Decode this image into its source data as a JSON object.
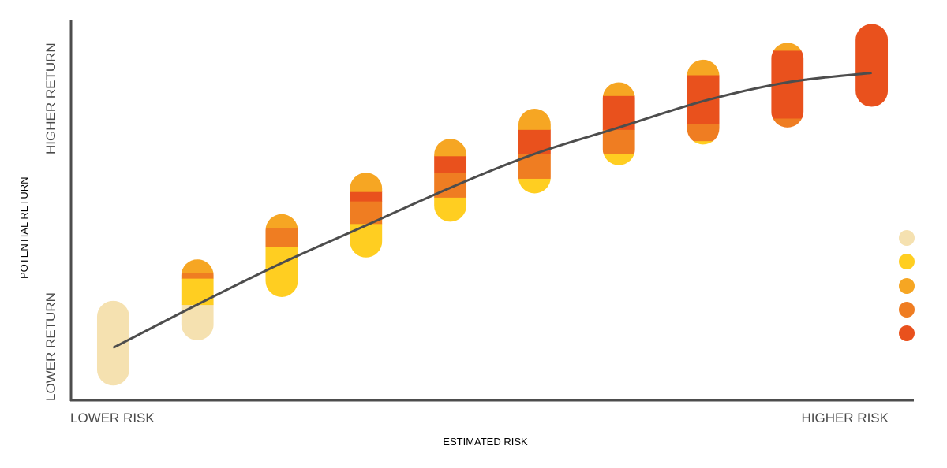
{
  "chart_data": {
    "type": "range-bar",
    "xlabel": "ESTIMATED RISK",
    "ylabel": "POTENTIAL RETURN",
    "x_low_label": "LOWER RISK",
    "x_high_label": "HIGHER RISK",
    "y_low_label": "LOWER RETURN",
    "y_high_label": "HIGHER RETURN",
    "xlim": [
      0.5,
      10.5
    ],
    "ylim": [
      0,
      100
    ],
    "grid": false,
    "legend_position": "right",
    "colors": [
      "#f5e1b0",
      "#ffce21",
      "#f6a623",
      "#ef7d22",
      "#e9511d"
    ],
    "trend_curve": [
      [
        1,
        13.5
      ],
      [
        2,
        25
      ],
      [
        3,
        36
      ],
      [
        4,
        46
      ],
      [
        5,
        56
      ],
      [
        6,
        65
      ],
      [
        7,
        72
      ],
      [
        8,
        79
      ],
      [
        9,
        84
      ],
      [
        10,
        86.5
      ]
    ],
    "bars": [
      {
        "x": 1,
        "segments": [
          {
            "band": 0,
            "from": 3.5,
            "to": 26
          }
        ]
      },
      {
        "x": 2,
        "segments": [
          {
            "band": 0,
            "from": 15.5,
            "to": 25
          },
          {
            "band": 1,
            "from": 25,
            "to": 32
          },
          {
            "band": 3,
            "from": 32,
            "to": 33.5
          },
          {
            "band": 2,
            "from": 33.5,
            "to": 37
          }
        ]
      },
      {
        "x": 3,
        "segments": [
          {
            "band": 1,
            "from": 27,
            "to": 40.5
          },
          {
            "band": 3,
            "from": 40.5,
            "to": 45.5
          },
          {
            "band": 2,
            "from": 45.5,
            "to": 49
          }
        ]
      },
      {
        "x": 4,
        "segments": [
          {
            "band": 1,
            "from": 37.5,
            "to": 46.5
          },
          {
            "band": 3,
            "from": 46.5,
            "to": 52.5
          },
          {
            "band": 4,
            "from": 52.5,
            "to": 55
          },
          {
            "band": 2,
            "from": 55,
            "to": 60
          }
        ]
      },
      {
        "x": 5,
        "segments": [
          {
            "band": 1,
            "from": 47,
            "to": 53.5
          },
          {
            "band": 3,
            "from": 53.5,
            "to": 60
          },
          {
            "band": 4,
            "from": 60,
            "to": 64.5
          },
          {
            "band": 2,
            "from": 64.5,
            "to": 69
          }
        ]
      },
      {
        "x": 6,
        "segments": [
          {
            "band": 1,
            "from": 54.5,
            "to": 58.5
          },
          {
            "band": 3,
            "from": 58.5,
            "to": 65
          },
          {
            "band": 4,
            "from": 65,
            "to": 71.5
          },
          {
            "band": 2,
            "from": 71.5,
            "to": 77
          }
        ]
      },
      {
        "x": 7,
        "segments": [
          {
            "band": 1,
            "from": 62,
            "to": 65
          },
          {
            "band": 3,
            "from": 65,
            "to": 71.5
          },
          {
            "band": 4,
            "from": 71.5,
            "to": 80.5
          },
          {
            "band": 2,
            "from": 80.5,
            "to": 84
          }
        ]
      },
      {
        "x": 8,
        "segments": [
          {
            "band": 1,
            "from": 67.5,
            "to": 68.5
          },
          {
            "band": 3,
            "from": 68.5,
            "to": 73
          },
          {
            "band": 4,
            "from": 73,
            "to": 86
          },
          {
            "band": 2,
            "from": 86,
            "to": 90
          }
        ]
      },
      {
        "x": 9,
        "segments": [
          {
            "band": 3,
            "from": 72,
            "to": 74.5
          },
          {
            "band": 4,
            "from": 74.5,
            "to": 92.5
          },
          {
            "band": 2,
            "from": 92.5,
            "to": 94.5
          }
        ]
      },
      {
        "x": 10,
        "segments": [
          {
            "band": 4,
            "from": 77.5,
            "to": 99.5
          }
        ]
      }
    ]
  }
}
